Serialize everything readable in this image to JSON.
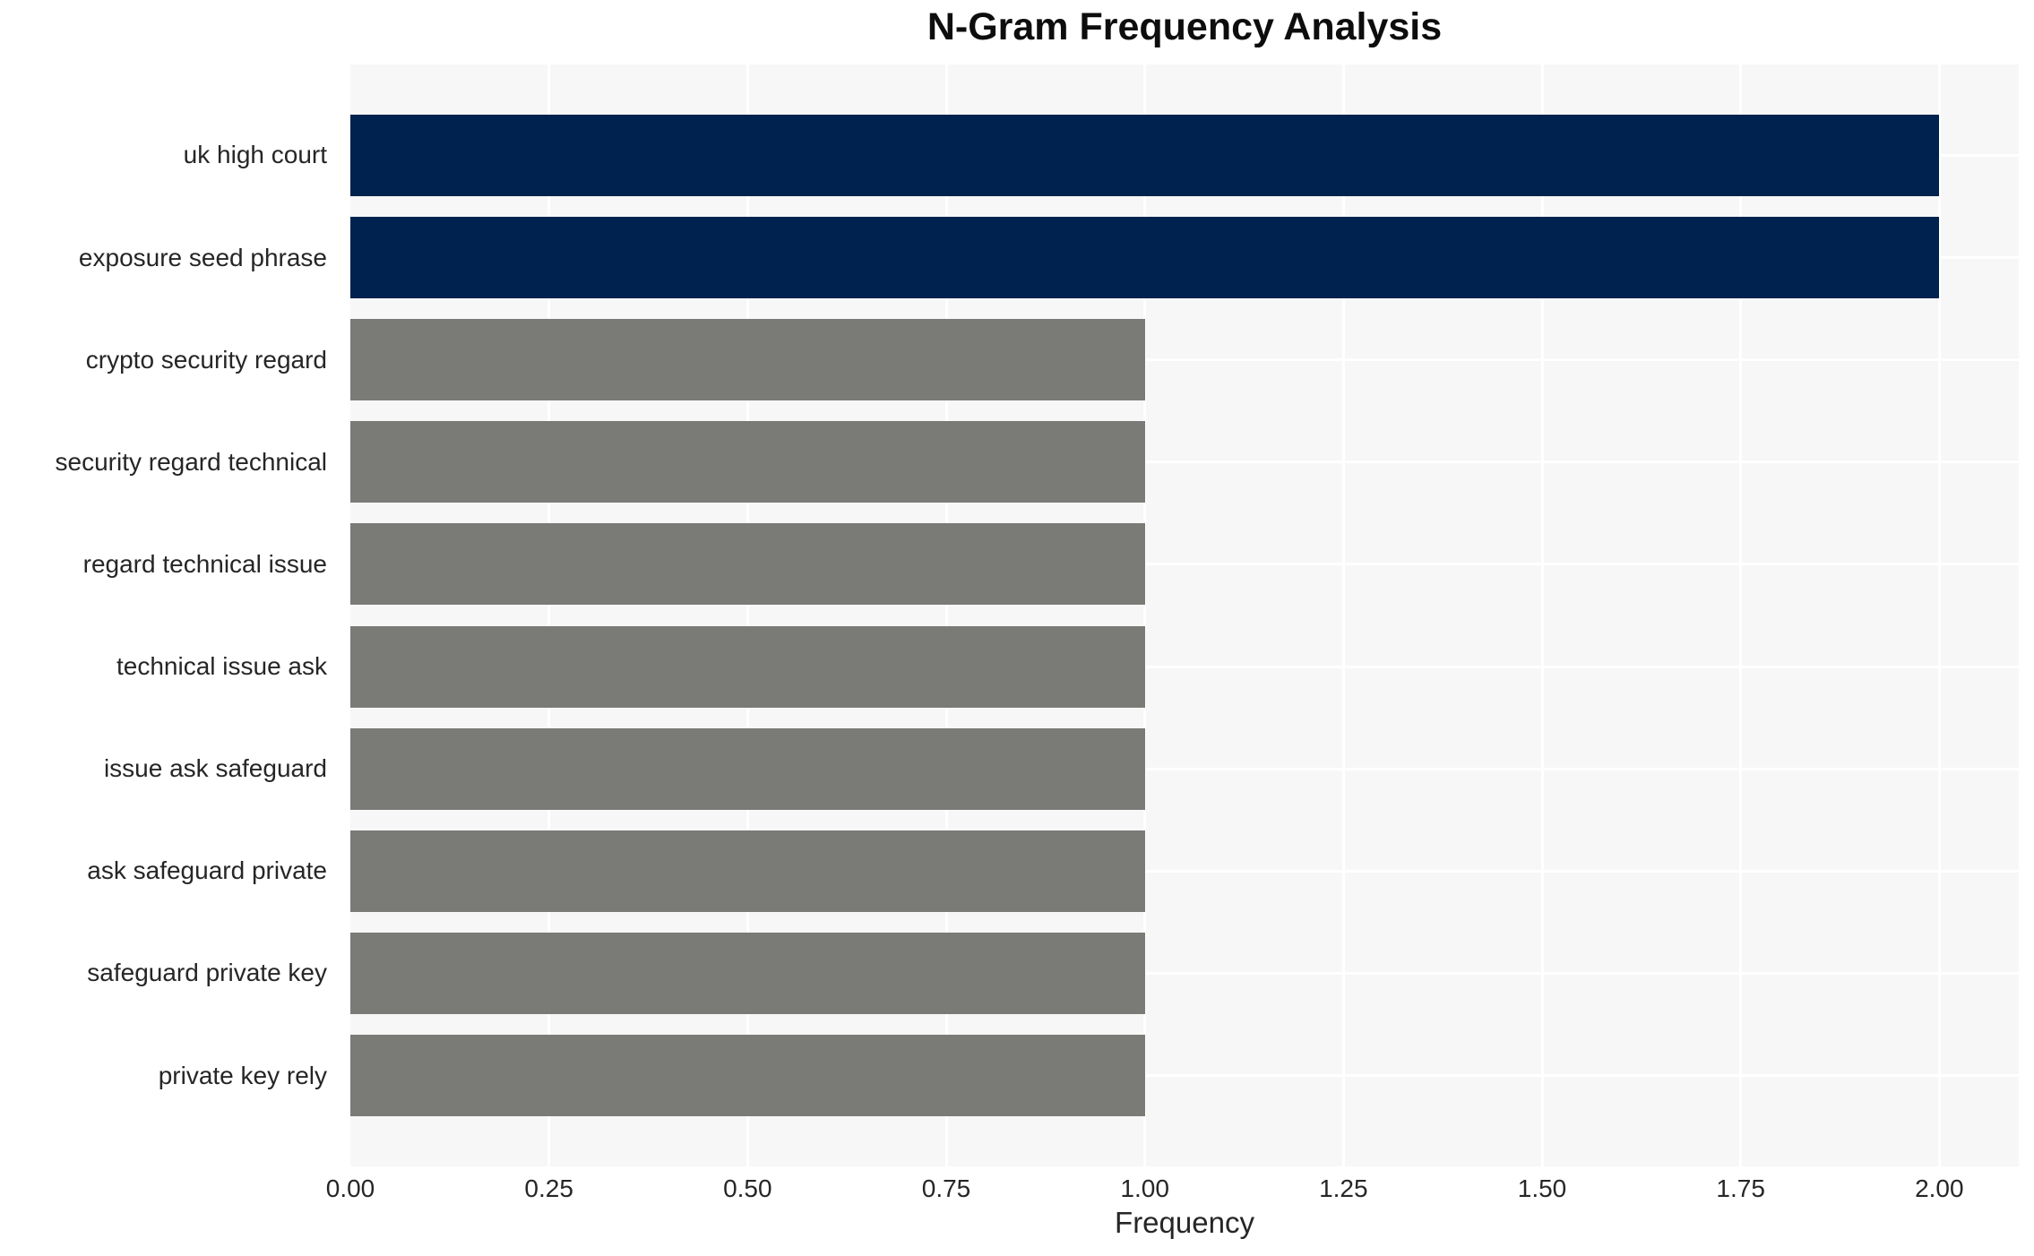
{
  "chart_data": {
    "type": "bar",
    "orientation": "horizontal",
    "title": "N-Gram Frequency Analysis",
    "xlabel": "Frequency",
    "ylabel": "",
    "categories": [
      "uk high court",
      "exposure seed phrase",
      "crypto security regard",
      "security regard technical",
      "regard technical issue",
      "technical issue ask",
      "issue ask safeguard",
      "ask safeguard private",
      "safeguard private key",
      "private key rely"
    ],
    "values": [
      2,
      2,
      1,
      1,
      1,
      1,
      1,
      1,
      1,
      1
    ],
    "bar_colors": [
      "#00224e",
      "#00224e",
      "#7a7a77",
      "#7a7a77",
      "#7a7a77",
      "#7a7a77",
      "#7a7a77",
      "#7a7a77",
      "#7a7a77",
      "#7a7a77"
    ],
    "xlim": [
      0,
      2.1
    ],
    "xticks": [
      0,
      0.25,
      0.5,
      0.75,
      1.0,
      1.25,
      1.5,
      1.75,
      2.0
    ],
    "xtick_labels": [
      "0.00",
      "0.25",
      "0.50",
      "0.75",
      "1.00",
      "1.25",
      "1.50",
      "1.75",
      "2.00"
    ],
    "grid": true,
    "legend": false,
    "colors": {
      "highlight_bar": "#00224e",
      "default_bar": "#7a7a77",
      "plot_background": "#f7f7f7",
      "figure_background": "#ffffff",
      "gridline": "#ffffff",
      "text": "#262626",
      "title_text": "#0d0d0d"
    }
  }
}
